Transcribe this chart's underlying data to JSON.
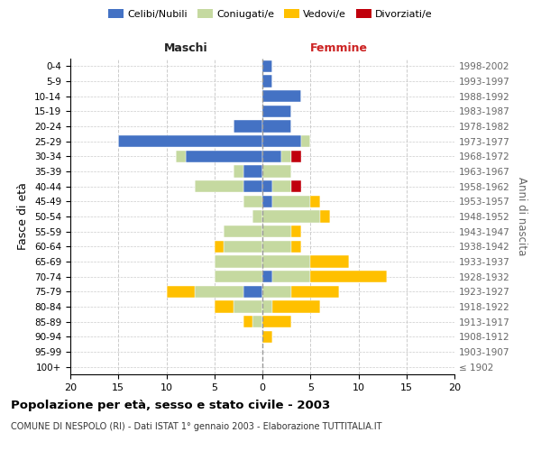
{
  "age_groups": [
    "100+",
    "95-99",
    "90-94",
    "85-89",
    "80-84",
    "75-79",
    "70-74",
    "65-69",
    "60-64",
    "55-59",
    "50-54",
    "45-49",
    "40-44",
    "35-39",
    "30-34",
    "25-29",
    "20-24",
    "15-19",
    "10-14",
    "5-9",
    "0-4"
  ],
  "year_labels": [
    "≤ 1902",
    "1903-1907",
    "1908-1912",
    "1913-1917",
    "1918-1922",
    "1923-1927",
    "1928-1932",
    "1933-1937",
    "1938-1942",
    "1943-1947",
    "1948-1952",
    "1953-1957",
    "1958-1962",
    "1963-1967",
    "1968-1972",
    "1973-1977",
    "1978-1982",
    "1983-1987",
    "1988-1992",
    "1993-1997",
    "1998-2002"
  ],
  "maschi": {
    "celibi": [
      0,
      0,
      0,
      0,
      0,
      2,
      0,
      0,
      0,
      0,
      0,
      0,
      2,
      2,
      8,
      15,
      3,
      0,
      0,
      0,
      0
    ],
    "coniugati": [
      0,
      0,
      0,
      1,
      3,
      5,
      5,
      5,
      4,
      4,
      1,
      2,
      5,
      1,
      1,
      0,
      0,
      0,
      0,
      0,
      0
    ],
    "vedovi": [
      0,
      0,
      0,
      1,
      2,
      3,
      0,
      0,
      1,
      0,
      0,
      0,
      0,
      0,
      0,
      0,
      0,
      0,
      0,
      0,
      0
    ],
    "divorziati": [
      0,
      0,
      0,
      0,
      0,
      0,
      0,
      0,
      0,
      0,
      0,
      0,
      0,
      0,
      0,
      0,
      0,
      0,
      0,
      0,
      0
    ]
  },
  "femmine": {
    "nubili": [
      0,
      0,
      0,
      0,
      0,
      0,
      1,
      0,
      0,
      0,
      0,
      1,
      1,
      0,
      2,
      4,
      3,
      3,
      4,
      1,
      1
    ],
    "coniugate": [
      0,
      0,
      0,
      0,
      1,
      3,
      4,
      5,
      3,
      3,
      6,
      4,
      2,
      3,
      1,
      1,
      0,
      0,
      0,
      0,
      0
    ],
    "vedove": [
      0,
      0,
      1,
      3,
      5,
      5,
      8,
      4,
      1,
      1,
      1,
      1,
      0,
      0,
      0,
      0,
      0,
      0,
      0,
      0,
      0
    ],
    "divorziate": [
      0,
      0,
      0,
      0,
      0,
      0,
      0,
      0,
      0,
      0,
      0,
      0,
      1,
      0,
      1,
      0,
      0,
      0,
      0,
      0,
      0
    ]
  },
  "color_celibi": "#4472c4",
  "color_coniugati": "#c5d9a0",
  "color_vedovi": "#ffc000",
  "color_divorziati": "#c0000c",
  "xlim": [
    -20,
    20
  ],
  "xticks": [
    -20,
    -15,
    -10,
    -5,
    0,
    5,
    10,
    15,
    20
  ],
  "xtick_labels": [
    "20",
    "15",
    "10",
    "5",
    "0",
    "5",
    "10",
    "15",
    "20"
  ],
  "title": "Popolazione per età, sesso e stato civile - 2003",
  "subtitle": "COMUNE DI NESPOLO (RI) - Dati ISTAT 1° gennaio 2003 - Elaborazione TUTTITALIA.IT",
  "ylabel_left": "Fasce di età",
  "ylabel_right": "Anni di nascita",
  "label_maschi": "Maschi",
  "label_femmine": "Femmine",
  "legend_celibi": "Celibi/Nubili",
  "legend_coniugati": "Coniugati/e",
  "legend_vedovi": "Vedovi/e",
  "legend_divorziati": "Divorziati/e",
  "background_color": "#ffffff",
  "grid_color": "#cccccc"
}
